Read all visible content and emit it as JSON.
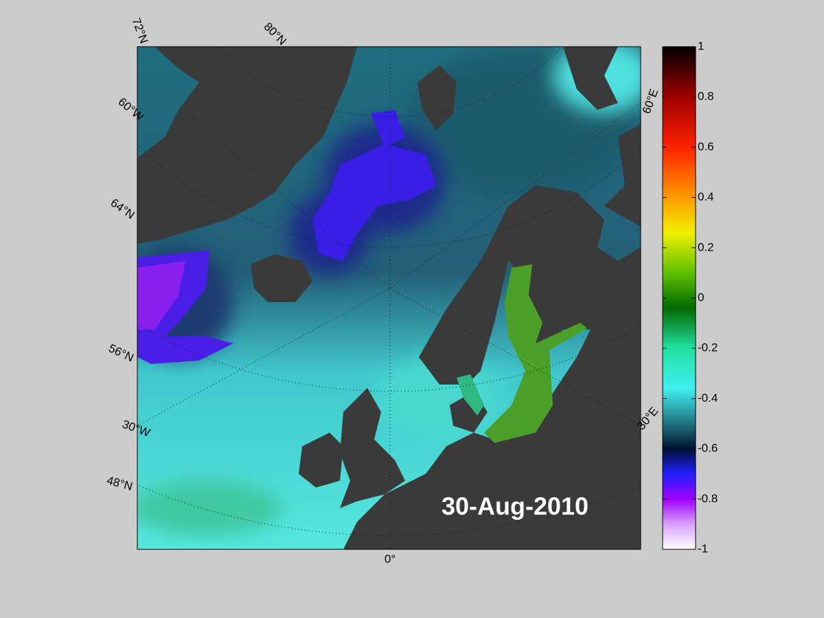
{
  "map": {
    "date_label": "30-Aug-2010",
    "graticule_labels": [
      "72°N",
      "80°N",
      "60°W",
      "64°N",
      "56°N",
      "30°W",
      "48°N",
      "0°",
      "30°E",
      "60°E"
    ]
  },
  "colorbar": {
    "lim": [
      -1,
      1
    ],
    "ticks": [
      1,
      0.8,
      0.6,
      0.4,
      0.2,
      0,
      -0.2,
      -0.4,
      -0.6,
      -0.8,
      -1
    ]
  }
}
